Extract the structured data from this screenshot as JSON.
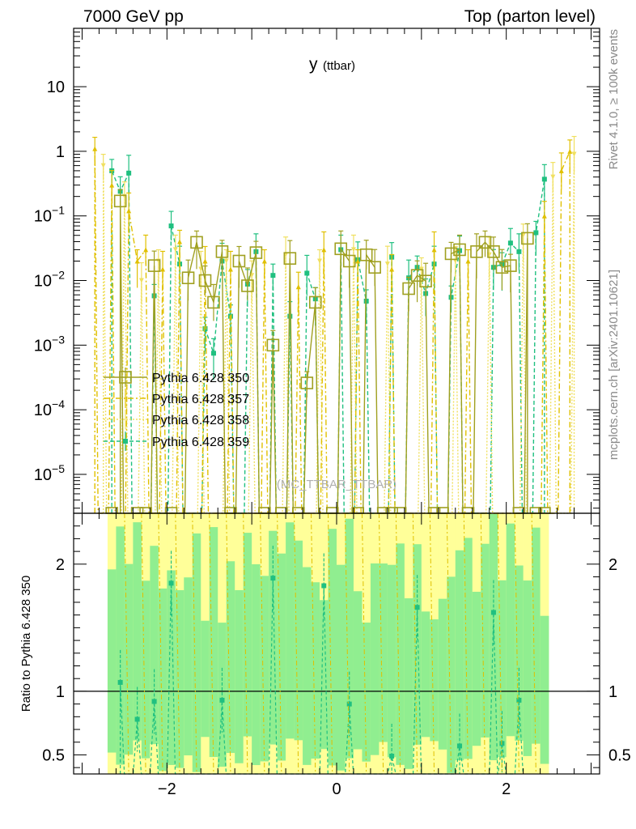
{
  "header": {
    "left_title": "7000 GeV pp",
    "right_title": "Top (parton level)",
    "plot_title_main": "y",
    "plot_title_sub": "(ttbar)"
  },
  "side_texts": {
    "rivet": "Rivet 4.1.0, ≥ 100k events",
    "mcplots": "mcplots.cern.ch [arXiv:2401.10621]"
  },
  "watermark": "(MC_TTBAR_TTBAR)",
  "chart_data": {
    "type": "line",
    "title": "y (ttbar)",
    "upper_panel": {
      "yscale": "log",
      "ylim": [
        2.5e-06,
        80
      ],
      "y_tick_labels": [
        "10",
        "1",
        "10−1",
        "10−2",
        "10−3",
        "10−4",
        "10−5"
      ],
      "y_tick_values": [
        10,
        1,
        0.1,
        0.01,
        0.001,
        0.0001,
        1e-05
      ],
      "legend_position": "middle-left",
      "series": [
        {
          "name": "Pythia 6.428 350",
          "color": "#a0a020",
          "style": "solid",
          "marker": "open-square",
          "x": [
            -2.55,
            -2.15,
            -1.75,
            -1.65,
            -1.55,
            -1.45,
            -1.35,
            -1.15,
            -1.05,
            -0.95,
            -0.75,
            -0.55,
            -0.35,
            -0.25,
            0.05,
            0.15,
            0.35,
            0.45,
            0.85,
            0.95,
            1.05,
            1.35,
            1.45,
            1.65,
            1.75,
            1.85,
            1.95,
            2.05,
            2.25
          ],
          "y": [
            0.17,
            0.017,
            0.011,
            0.039,
            0.01,
            0.0046,
            0.028,
            0.02,
            0.0083,
            0.027,
            0.001,
            0.022,
            0.00026,
            0.0046,
            0.031,
            0.02,
            0.025,
            0.016,
            0.0075,
            0.012,
            0.0098,
            0.026,
            0.03,
            0.028,
            0.039,
            0.028,
            0.016,
            0.017,
            0.045
          ]
        },
        {
          "name": "Pythia 6.428 357",
          "color": "#e0c000",
          "style": "dash-dot",
          "marker": "triangle",
          "x": [
            -2.85,
            -2.65,
            -2.45,
            -2.35,
            -2.25,
            -2.05,
            -1.85,
            -1.55,
            -1.25,
            -0.85,
            -0.45,
            -0.15,
            0.25,
            0.65,
            1.15,
            1.55,
            2.45,
            2.65,
            2.75
          ],
          "y": [
            1.1,
            0.3,
            0.12,
            0.02,
            0.03,
            0.015,
            0.04,
            0.02,
            0.015,
            0.02,
            0.008,
            0.03,
            0.02,
            0.015,
            0.03,
            0.02,
            0.1,
            0.5,
            1.0
          ]
        },
        {
          "name": "Pythia 6.428 358",
          "color": "#f0e060",
          "style": "dotted",
          "marker": "triangle-down",
          "x": [
            -2.75,
            -2.5,
            -2.3,
            -2.1,
            -1.9,
            -1.6,
            -1.3,
            -1.0,
            -0.6,
            -0.2,
            0.2,
            0.6,
            1.0,
            1.4,
            1.8,
            2.2,
            2.55,
            2.8
          ],
          "y": [
            0.6,
            0.2,
            0.01,
            0.02,
            0.03,
            0.015,
            0.02,
            0.012,
            0.025,
            0.02,
            0.03,
            0.018,
            0.015,
            0.02,
            0.025,
            0.05,
            0.4,
            0.9
          ]
        },
        {
          "name": "Pythia 6.428 359",
          "color": "#20c080",
          "style": "dashed",
          "marker": "filled-square",
          "x": [
            -2.65,
            -2.55,
            -2.45,
            -2.15,
            -1.95,
            -1.85,
            -1.55,
            -1.45,
            -1.35,
            -1.25,
            -1.05,
            -0.95,
            -0.75,
            -0.55,
            -0.35,
            -0.25,
            0.05,
            0.25,
            0.35,
            0.65,
            0.85,
            0.95,
            1.05,
            1.15,
            1.35,
            1.45,
            1.85,
            1.95,
            2.05,
            2.15,
            2.35,
            2.45
          ],
          "y": [
            0.5,
            0.24,
            0.46,
            0.0058,
            0.07,
            0.018,
            0.0018,
            0.00075,
            0.02,
            0.0028,
            0.0088,
            0.028,
            0.012,
            0.0028,
            0.013,
            0.0052,
            0.03,
            0.021,
            0.0048,
            0.023,
            0.011,
            0.016,
            0.0063,
            0.018,
            0.0055,
            0.029,
            0.016,
            0.018,
            0.038,
            0.028,
            0.055,
            0.37
          ]
        }
      ]
    },
    "lower_panel": {
      "ylabel": "Ratio to Pythia 6.428 350",
      "ylim": [
        0.35,
        2.4
      ],
      "y_tick_labels": [
        "2",
        "1",
        "0.5"
      ],
      "y_tick_values": [
        2,
        1,
        0.5
      ],
      "reference_line": 1,
      "band_x_range": [
        -2.7,
        2.5
      ],
      "ratio_points_359": {
        "x": [
          -2.55,
          -2.35,
          -2.15,
          -1.95,
          -1.35,
          -0.75,
          -0.15,
          0.15,
          0.65,
          0.95,
          1.45,
          1.85,
          1.95,
          2.15
        ],
        "y": [
          1.07,
          0.78,
          0.92,
          1.85,
          0.93,
          1.89,
          1.83,
          0.9,
          0.49,
          1.66,
          0.57,
          1.62,
          0.59,
          0.93
        ]
      }
    },
    "x_axis": {
      "xlim": [
        -3.1,
        3.1
      ],
      "tick_labels": [
        "−2",
        "0",
        "2"
      ],
      "tick_values": [
        -2,
        0,
        2
      ]
    }
  }
}
